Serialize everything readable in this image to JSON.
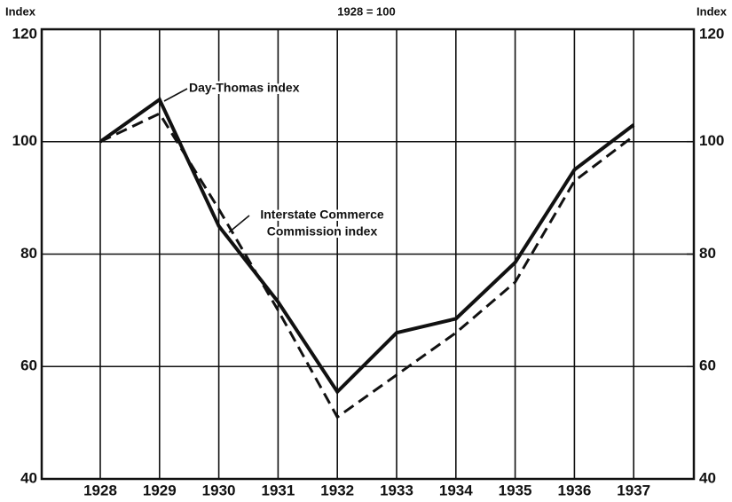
{
  "chart_data": {
    "type": "line",
    "title": "1928 = 100",
    "ylabel": "Index",
    "y2label": "Index",
    "categories": [
      "1928",
      "1929",
      "1930",
      "1931",
      "1932",
      "1933",
      "1934",
      "1935",
      "1936",
      "1937"
    ],
    "series": [
      {
        "color": "#111111",
        "dashed": false,
        "values": [
          100,
          107.5,
          85,
          71.5,
          55.5,
          66,
          68.5,
          78.5,
          95,
          103
        ]
      },
      {
        "color": "#111111",
        "dashed": true,
        "values": [
          100,
          105,
          88,
          70,
          51,
          58.5,
          66,
          75,
          93,
          101
        ]
      }
    ],
    "annotations": [
      {
        "lines": [
          "Day-Thomas index"
        ]
      },
      {
        "lines": [
          "Interstate Commerce",
          "Commission index"
        ]
      }
    ],
    "ylim": [
      40,
      120
    ],
    "yticks": [
      40,
      60,
      80,
      100,
      120
    ],
    "y2lim": [
      40,
      120
    ],
    "y2ticks": [
      40,
      60,
      80,
      100,
      120
    ],
    "grid": true
  }
}
